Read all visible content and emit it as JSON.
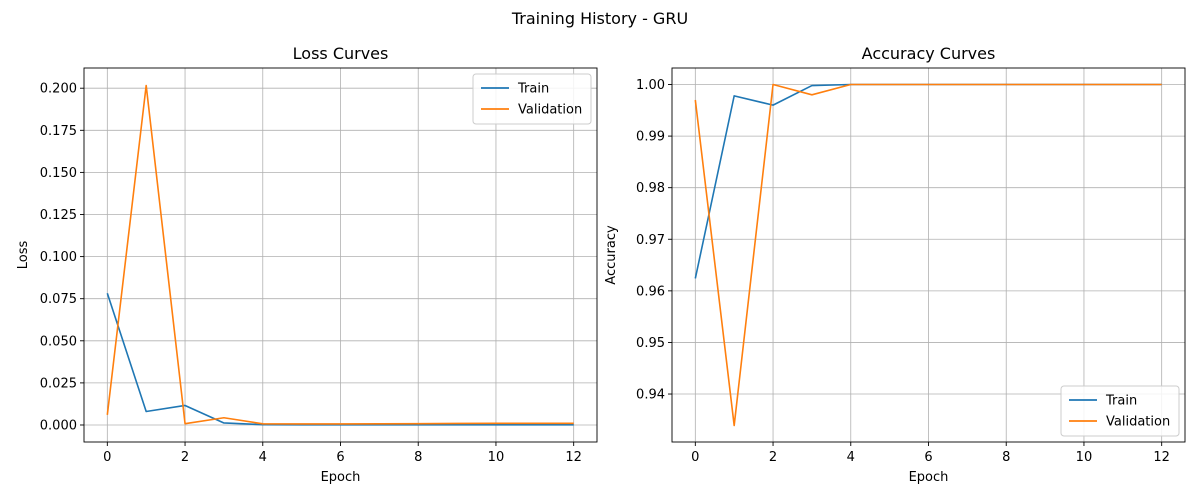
{
  "figure": {
    "suptitle": "Training History - GRU"
  },
  "chart_data": [
    {
      "type": "line",
      "title": "Loss Curves",
      "xlabel": "Epoch",
      "ylabel": "Loss",
      "xlim": [
        -0.6,
        12.6
      ],
      "ylim": [
        -0.0101,
        0.212
      ],
      "xticks": [
        0,
        2,
        4,
        6,
        8,
        10,
        12
      ],
      "yticks": [
        0.0,
        0.025,
        0.05,
        0.075,
        0.1,
        0.125,
        0.15,
        0.175,
        0.2
      ],
      "ytick_labels": [
        "0.000",
        "0.025",
        "0.050",
        "0.075",
        "0.100",
        "0.125",
        "0.150",
        "0.175",
        "0.200"
      ],
      "grid": true,
      "legend_position": "top-right",
      "x": [
        0,
        1,
        2,
        3,
        4,
        5,
        6,
        7,
        8,
        9,
        10,
        11,
        12
      ],
      "series": [
        {
          "name": "Train",
          "color": "#1f77b4",
          "values": [
            0.0782,
            0.008,
            0.0116,
            0.0012,
            0.0002,
            0.0001,
            0.0001,
            0.0001,
            0.0001,
            0.0001,
            0.0001,
            0.0001,
            0.0001
          ]
        },
        {
          "name": "Validation",
          "color": "#ff7f0e",
          "values": [
            0.006,
            0.2016,
            0.0008,
            0.0043,
            0.0007,
            0.0006,
            0.0006,
            0.0007,
            0.0008,
            0.0009,
            0.001,
            0.001,
            0.001
          ]
        }
      ]
    },
    {
      "type": "line",
      "title": "Accuracy Curves",
      "xlabel": "Epoch",
      "ylabel": "Accuracy",
      "xlim": [
        -0.6,
        12.6
      ],
      "ylim": [
        0.9307,
        1.0032
      ],
      "xticks": [
        0,
        2,
        4,
        6,
        8,
        10,
        12
      ],
      "yticks": [
        0.94,
        0.95,
        0.96,
        0.97,
        0.98,
        0.99,
        1.0
      ],
      "ytick_labels": [
        "0.94",
        "0.95",
        "0.96",
        "0.97",
        "0.98",
        "0.99",
        "1.00"
      ],
      "grid": true,
      "legend_position": "bottom-right",
      "x": [
        0,
        1,
        2,
        3,
        4,
        5,
        6,
        7,
        8,
        9,
        10,
        11,
        12
      ],
      "series": [
        {
          "name": "Train",
          "color": "#1f77b4",
          "values": [
            0.9624,
            0.9978,
            0.996,
            0.9998,
            1.0,
            1.0,
            1.0,
            1.0,
            1.0,
            1.0,
            1.0,
            1.0,
            1.0
          ]
        },
        {
          "name": "Validation",
          "color": "#ff7f0e",
          "values": [
            0.997,
            0.9339,
            1.0,
            0.998,
            1.0,
            1.0,
            1.0,
            1.0,
            1.0,
            1.0,
            1.0,
            1.0,
            1.0
          ]
        }
      ]
    }
  ]
}
